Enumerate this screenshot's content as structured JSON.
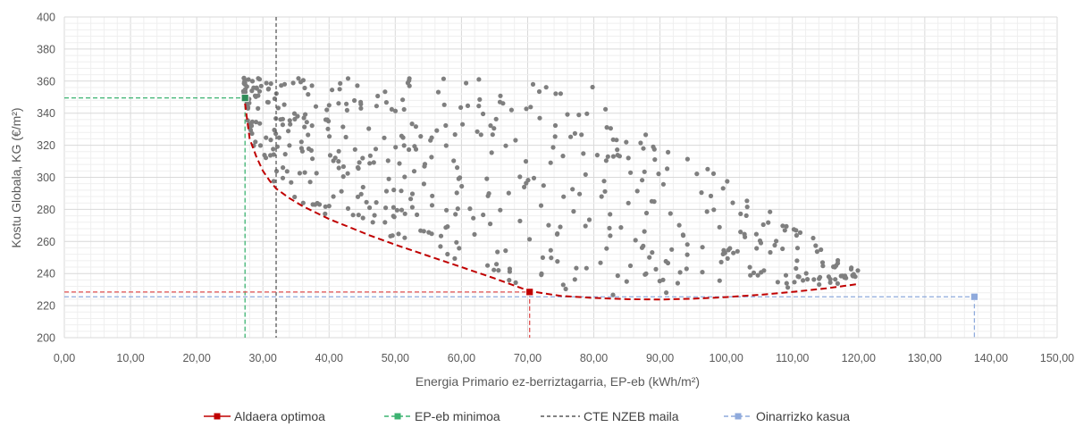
{
  "chart_data": {
    "type": "scatter",
    "xlabel": "Energia Primario ez-berriztagarria, EP-eb (kWh/m²)",
    "ylabel": "Kostu Globala, KG (€/m²)",
    "xlim": [
      0,
      150
    ],
    "ylim": [
      200,
      400
    ],
    "xticks": [
      0,
      10,
      20,
      30,
      40,
      50,
      60,
      70,
      80,
      90,
      100,
      110,
      120,
      130,
      140,
      150
    ],
    "xtick_labels": [
      "0,00",
      "10,00",
      "20,00",
      "30,00",
      "40,00",
      "50,00",
      "60,00",
      "70,00",
      "80,00",
      "90,00",
      "100,00",
      "110,00",
      "120,00",
      "130,00",
      "140,00",
      "150,00"
    ],
    "yticks": [
      200,
      220,
      240,
      260,
      280,
      300,
      320,
      340,
      360,
      380,
      400
    ],
    "grid": true,
    "legend_position": "bottom",
    "colors": {
      "scatter": "#7f7f7f",
      "optimal": "#c00000",
      "min": "#3cb371",
      "nzeb": "#595959",
      "base": "#8faadc",
      "grid": "#d9d9d9"
    },
    "scatter_seed": 7,
    "scatter_count": 520,
    "optimal_curve": {
      "x": [
        27.3,
        28,
        29,
        30,
        31,
        32,
        34,
        36,
        38,
        40,
        43,
        46,
        50,
        55,
        60,
        65,
        70.3,
        75,
        80,
        85,
        90,
        95,
        100,
        105,
        110,
        115,
        120
      ],
      "y": [
        346,
        324,
        313,
        304,
        298,
        293,
        287,
        282,
        278,
        274,
        269,
        264,
        258,
        251,
        244,
        237,
        229,
        226,
        224.8,
        224,
        223.8,
        224.3,
        225.3,
        226.7,
        228.5,
        230.7,
        233.5
      ]
    },
    "series": [
      {
        "name": "Aldaera optimoa",
        "point": [
          70.3,
          228.5
        ],
        "color": "#c00000"
      },
      {
        "name": "EP-eb minimoa",
        "point": [
          27.3,
          349.5
        ],
        "color": "#3cb371"
      },
      {
        "name": "CTE NZEB maila",
        "x": 32,
        "color": "#595959"
      },
      {
        "name": "Oinarrizko kasua",
        "point": [
          137.5,
          225.5
        ],
        "color": "#8faadc"
      }
    ],
    "legend": [
      "Aldaera optimoa",
      "EP-eb minimoa",
      "CTE NZEB maila",
      "Oinarrizko kasua"
    ]
  }
}
